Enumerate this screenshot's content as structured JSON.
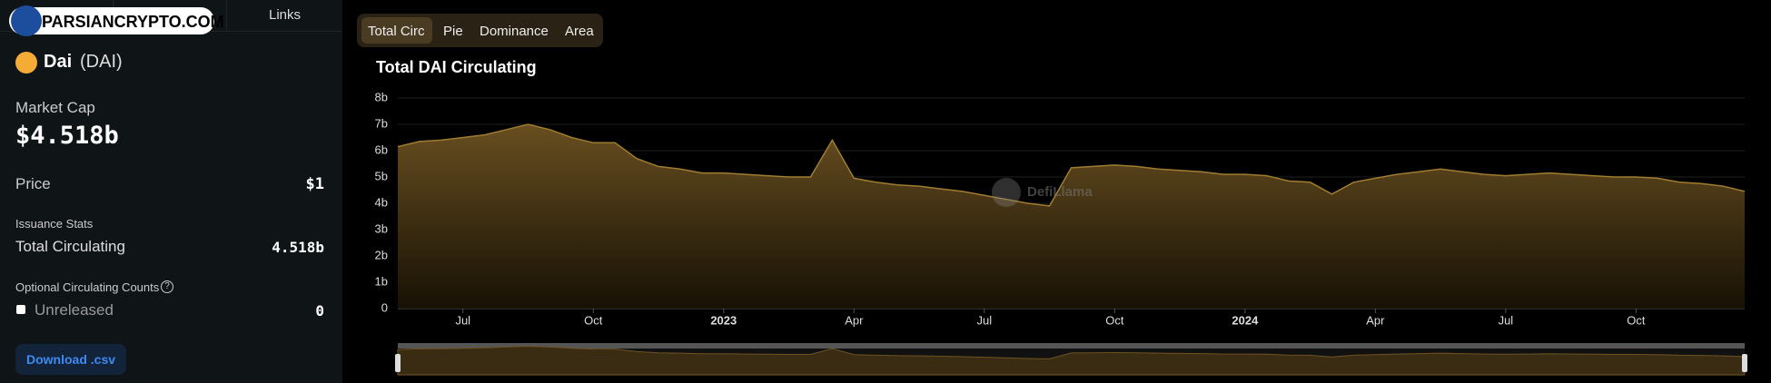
{
  "watermark": "PARSIANCRYPTO.COM",
  "sidebar": {
    "tab": "Links",
    "name": "Dai",
    "symbol": "(DAI)",
    "market_cap_label": "Market Cap",
    "market_cap": "$4.518b",
    "price_label": "Price",
    "price": "$1",
    "issuance_label": "Issuance Stats",
    "total_label": "Total Circulating",
    "total": "4.518b",
    "optional_label": "Optional Circulating Counts",
    "unreleased_label": "Unreleased",
    "unreleased": "0",
    "download": "Download .csv"
  },
  "tabs": [
    "Total Circ",
    "Pie",
    "Dominance",
    "Area"
  ],
  "logo_text": "DefiLlama",
  "chart_data": {
    "type": "area",
    "title": "Total DAI Circulating",
    "color": "#a07c30",
    "categories": [
      null,
      null,
      null,
      "Jul",
      null,
      null,
      null,
      null,
      null,
      "Oct",
      null,
      null,
      null,
      null,
      null,
      "2023",
      null,
      null,
      null,
      null,
      null,
      "Apr",
      null,
      null,
      null,
      null,
      null,
      "Jul",
      null,
      null,
      null,
      null,
      null,
      "Oct",
      null,
      null,
      null,
      null,
      null,
      "2024",
      null,
      null,
      null,
      null,
      null,
      "Apr",
      null,
      null,
      null,
      null,
      null,
      "Jul",
      null,
      null,
      null,
      null,
      null,
      "Oct",
      null,
      null,
      null,
      null,
      null
    ],
    "values": [
      6.15,
      6.35,
      6.4,
      6.5,
      6.6,
      6.8,
      7.0,
      6.8,
      6.5,
      6.3,
      6.3,
      5.7,
      5.4,
      5.3,
      5.15,
      5.15,
      5.1,
      5.05,
      5.0,
      5.0,
      6.4,
      4.95,
      4.8,
      4.7,
      4.65,
      4.55,
      4.45,
      4.3,
      4.15,
      4.0,
      3.9,
      5.35,
      5.4,
      5.45,
      5.4,
      5.3,
      5.25,
      5.2,
      5.1,
      5.1,
      5.05,
      4.85,
      4.8,
      4.35,
      4.8,
      4.95,
      5.1,
      5.2,
      5.3,
      5.2,
      5.1,
      5.05,
      5.1,
      5.15,
      5.1,
      5.05,
      5.0,
      5.0,
      4.95,
      4.8,
      4.75,
      4.65,
      4.45
    ],
    "ylim": [
      0,
      8
    ],
    "yticks": [
      0,
      {
        "value": 1,
        "label": "1b"
      },
      {
        "value": 2,
        "label": "2b"
      },
      {
        "value": 3,
        "label": "3b"
      },
      {
        "value": 4,
        "label": "4b"
      },
      {
        "value": 5,
        "label": "5b"
      },
      {
        "value": 6,
        "label": "6b"
      },
      {
        "value": 7,
        "label": "7b"
      },
      {
        "value": 8,
        "label": "8b"
      }
    ],
    "grid": true
  }
}
